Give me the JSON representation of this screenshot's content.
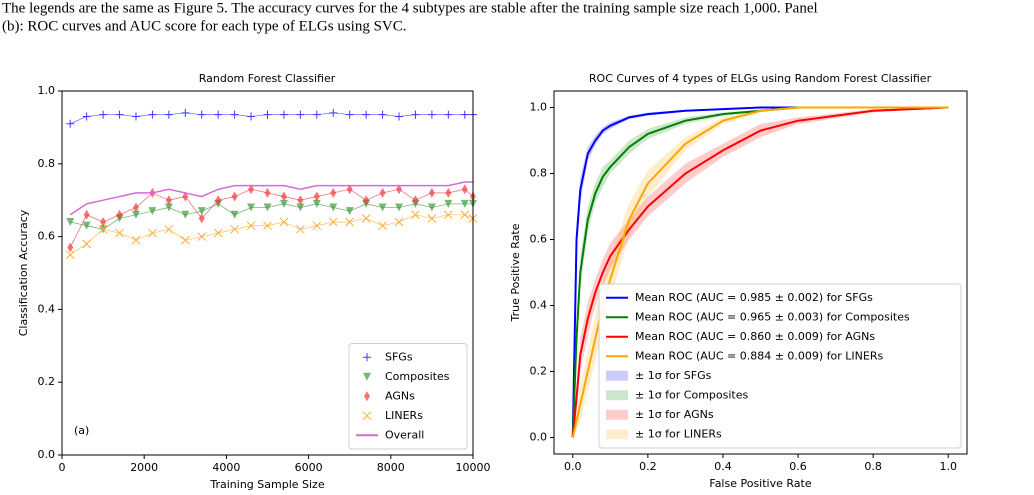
{
  "caption": [
    "The legends are the same as Figure 5. The accuracy curves for the 4 subtypes are stable after the training sample size reach 1,000. Panel",
    "(b): ROC curves and AUC score for each type of ELGs using SVC."
  ],
  "chart_data": [
    {
      "type": "line",
      "title": "Random Forest Classifier",
      "xlabel": "Training Sample Size",
      "ylabel": "Classification Accuracy",
      "annotation": "(a)",
      "legend": "lower right",
      "x": [
        200,
        600,
        1000,
        1400,
        1800,
        2200,
        2600,
        3000,
        3400,
        3800,
        4200,
        4600,
        5000,
        5400,
        5800,
        6200,
        6600,
        7000,
        7400,
        7800,
        8200,
        8600,
        9000,
        9400,
        9800,
        10000
      ],
      "xlim": [
        0,
        10000
      ],
      "ylim": [
        0,
        1
      ],
      "xticks": [
        0,
        2000,
        4000,
        6000,
        8000,
        10000
      ],
      "yticks": [
        {
          "value": 0,
          "label": "0.0"
        },
        0.2,
        0.4,
        0.6,
        0.8,
        {
          "value": 1,
          "label": "1.0"
        }
      ],
      "series": [
        {
          "name": "SFGs",
          "color": "#3a3aff",
          "marker": "+",
          "values": [
            0.91,
            0.93,
            0.935,
            0.935,
            0.93,
            0.935,
            0.935,
            0.94,
            0.935,
            0.935,
            0.935,
            0.93,
            0.935,
            0.935,
            0.935,
            0.935,
            0.94,
            0.935,
            0.935,
            0.935,
            0.93,
            0.935,
            0.935,
            0.935,
            0.935,
            0.935
          ]
        },
        {
          "name": "Composites",
          "color": "#3a9a3a",
          "marker": "v",
          "values": [
            0.64,
            0.63,
            0.62,
            0.65,
            0.66,
            0.67,
            0.68,
            0.66,
            0.67,
            0.69,
            0.66,
            0.68,
            0.68,
            0.69,
            0.68,
            0.69,
            0.68,
            0.67,
            0.69,
            0.68,
            0.68,
            0.69,
            0.68,
            0.69,
            0.69,
            0.69
          ]
        },
        {
          "name": "AGNs",
          "color": "#f03a3a",
          "marker": "d",
          "values": [
            0.57,
            0.66,
            0.64,
            0.66,
            0.68,
            0.72,
            0.7,
            0.71,
            0.65,
            0.7,
            0.71,
            0.73,
            0.72,
            0.71,
            0.7,
            0.71,
            0.72,
            0.73,
            0.7,
            0.72,
            0.73,
            0.7,
            0.72,
            0.72,
            0.73,
            0.71
          ]
        },
        {
          "name": "LINERs",
          "color": "#ffae3a",
          "marker": "x",
          "values": [
            0.55,
            0.58,
            0.62,
            0.61,
            0.59,
            0.61,
            0.62,
            0.59,
            0.6,
            0.61,
            0.62,
            0.63,
            0.63,
            0.64,
            0.62,
            0.63,
            0.64,
            0.64,
            0.65,
            0.63,
            0.64,
            0.66,
            0.65,
            0.66,
            0.66,
            0.65
          ]
        },
        {
          "name": "Overall",
          "color": "#d66ad6",
          "marker": null,
          "values": [
            0.66,
            0.69,
            0.7,
            0.71,
            0.72,
            0.72,
            0.73,
            0.72,
            0.71,
            0.73,
            0.74,
            0.74,
            0.74,
            0.74,
            0.73,
            0.74,
            0.74,
            0.74,
            0.74,
            0.74,
            0.74,
            0.74,
            0.74,
            0.74,
            0.75,
            0.75
          ]
        }
      ]
    },
    {
      "type": "line",
      "title": "ROC Curves of 4 types of ELGs using Random Forest Classifier",
      "xlabel": "False Positive Rate",
      "ylabel": "True Positive Rate",
      "legend": "lower right",
      "x": [
        0,
        0.01,
        0.02,
        0.04,
        0.06,
        0.08,
        0.1,
        0.15,
        0.2,
        0.3,
        0.4,
        0.5,
        0.6,
        0.8,
        1
      ],
      "xlim": [
        -0.05,
        1.05
      ],
      "ylim": [
        -0.05,
        1.05
      ],
      "xticks": [
        {
          "value": 0,
          "label": "0.0"
        },
        0.2,
        0.4,
        0.6,
        0.8,
        {
          "value": 1,
          "label": "1.0"
        }
      ],
      "yticks": [
        {
          "value": 0,
          "label": "0.0"
        },
        0.2,
        0.4,
        0.6,
        0.8,
        {
          "value": 1,
          "label": "1.0"
        }
      ],
      "series": [
        {
          "name": "Mean ROC (AUC = 0.985 ± 0.002) for SFGs",
          "band_name": "± 1σ for SFGs",
          "color": "#0000ff",
          "values": [
            0,
            0.6,
            0.75,
            0.86,
            0.9,
            0.93,
            0.945,
            0.97,
            0.98,
            0.99,
            0.995,
            1,
            1,
            1,
            1
          ],
          "sigma": [
            0,
            0.05,
            0.04,
            0.02,
            0.015,
            0.01,
            0.01,
            0.005,
            0.005,
            0.003,
            0.002,
            0,
            0,
            0,
            0
          ]
        },
        {
          "name": "Mean ROC (AUC = 0.965 ± 0.003) for Composites",
          "band_name": "± 1σ for Composites",
          "color": "#008000",
          "values": [
            0,
            0.3,
            0.5,
            0.66,
            0.74,
            0.79,
            0.82,
            0.88,
            0.92,
            0.96,
            0.98,
            0.99,
            1,
            1,
            1
          ],
          "sigma": [
            0,
            0.05,
            0.05,
            0.04,
            0.03,
            0.03,
            0.02,
            0.02,
            0.015,
            0.01,
            0.005,
            0.003,
            0,
            0,
            0
          ]
        },
        {
          "name": "Mean ROC (AUC = 0.860 ± 0.009) for AGNs",
          "band_name": "± 1σ for AGNs",
          "color": "#ff0000",
          "values": [
            0,
            0.12,
            0.25,
            0.36,
            0.44,
            0.5,
            0.55,
            0.63,
            0.7,
            0.8,
            0.87,
            0.93,
            0.96,
            0.99,
            1
          ],
          "sigma": [
            0,
            0.04,
            0.05,
            0.05,
            0.04,
            0.04,
            0.04,
            0.03,
            0.03,
            0.03,
            0.02,
            0.02,
            0.01,
            0.005,
            0
          ]
        },
        {
          "name": "Mean ROC (AUC = 0.884 ± 0.009) for LINERs",
          "band_name": "± 1σ for LINERs",
          "color": "#ffa500",
          "values": [
            0,
            0.05,
            0.1,
            0.2,
            0.3,
            0.4,
            0.48,
            0.66,
            0.77,
            0.89,
            0.96,
            0.99,
            1,
            1,
            1
          ],
          "sigma": [
            0,
            0.03,
            0.05,
            0.06,
            0.07,
            0.07,
            0.06,
            0.05,
            0.04,
            0.02,
            0.01,
            0.005,
            0,
            0,
            0
          ]
        }
      ]
    }
  ]
}
